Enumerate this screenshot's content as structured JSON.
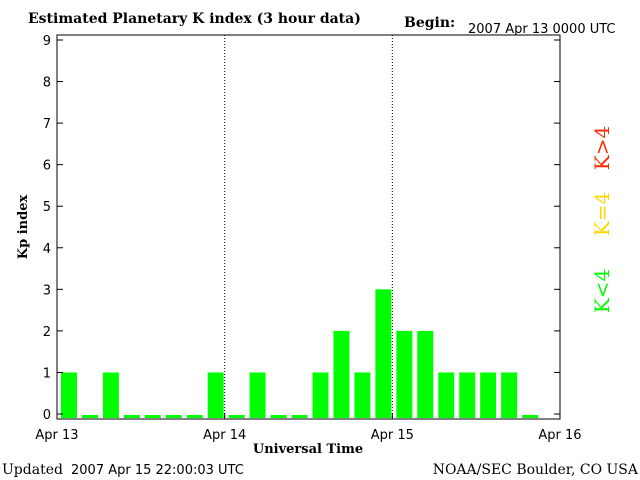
{
  "header": {
    "title": "Estimated Planetary K index (3 hour data)",
    "begin_label": "Begin:",
    "begin_value": "2007 Apr 13 0000 UTC"
  },
  "footer": {
    "updated_label": "Updated",
    "updated_value": "2007 Apr 15 22:00:03 UTC",
    "credit": "NOAA/SEC Boulder, CO USA"
  },
  "legend": [
    {
      "label": "K<4",
      "color": "#00ff00"
    },
    {
      "label": "K=4",
      "color": "#ffd700"
    },
    {
      "label": "K>4",
      "color": "#ff2a00"
    }
  ],
  "chart_data": {
    "type": "bar",
    "title": "Estimated Planetary K index (3 hour data)",
    "xlabel": "Universal Time",
    "ylabel": "Kp index",
    "ylim": [
      0,
      9
    ],
    "xlim": [
      "Apr 13",
      "Apr 16"
    ],
    "x_ticks": [
      "Apr 13",
      "Apr 14",
      "Apr 15",
      "Apr 16"
    ],
    "y_ticks": [
      "0",
      "1",
      "2",
      "3",
      "4",
      "5",
      "6",
      "7",
      "8",
      "9"
    ],
    "interval_hours": 3,
    "day_divider_lines": "dotted",
    "bar_color": "#00ff00",
    "values": [
      1,
      0,
      1,
      0,
      0,
      0,
      0,
      1,
      0,
      1,
      0,
      0,
      1,
      2,
      1,
      3,
      2,
      2,
      1,
      1,
      1,
      1,
      0
    ]
  }
}
